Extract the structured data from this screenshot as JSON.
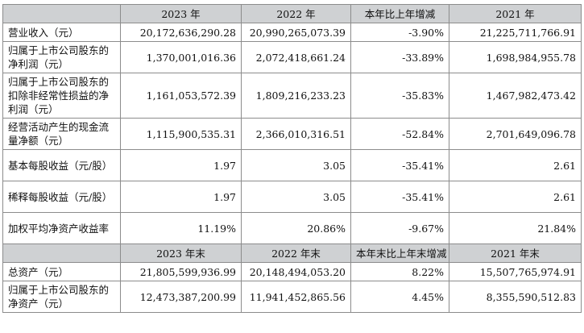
{
  "header1": [
    "",
    "2023 年",
    "2022 年",
    "本年比上年增减",
    "2021 年"
  ],
  "rows1": [
    {
      "label": "营业收入（元）",
      "v2023": "20,172,636,290.28",
      "v2022": "20,990,265,073.39",
      "change": "-3.90%",
      "v2021": "21,225,711,766.91"
    },
    {
      "label": "归属于上市公司股东的净利润（元）",
      "v2023": "1,370,001,016.36",
      "v2022": "2,072,418,661.24",
      "change": "-33.89%",
      "v2021": "1,698,984,955.78"
    },
    {
      "label": "归属于上市公司股东的扣除非经常性损益的净利润（元）",
      "v2023": "1,161,053,572.39",
      "v2022": "1,809,216,233.23",
      "change": "-35.83%",
      "v2021": "1,467,982,473.42"
    },
    {
      "label": "经营活动产生的现金流量净额（元）",
      "v2023": "1,115,900,535.31",
      "v2022": "2,366,010,316.51",
      "change": "-52.84%",
      "v2021": "2,701,649,096.78"
    },
    {
      "label": "基本每股收益（元/股）",
      "v2023": "1.97",
      "v2022": "3.05",
      "change": "-35.41%",
      "v2021": "2.61"
    },
    {
      "label": "稀释每股收益（元/股）",
      "v2023": "1.97",
      "v2022": "3.05",
      "change": "-35.41%",
      "v2021": "2.61"
    },
    {
      "label": "加权平均净资产收益率",
      "v2023": "11.19%",
      "v2022": "20.86%",
      "change": "-9.67%",
      "v2021": "21.84%"
    }
  ],
  "header2": [
    "",
    "2023 年末",
    "2022 年末",
    "本年末比上年末增减",
    "2021 年末"
  ],
  "rows2": [
    {
      "label": "总资产（元）",
      "v2023": "21,805,599,936.99",
      "v2022": "20,148,494,053.20",
      "change": "8.22%",
      "v2021": "15,507,765,974.91"
    },
    {
      "label": "归属于上市公司股东的净资产（元）",
      "v2023": "12,473,387,200.99",
      "v2022": "11,941,452,865.56",
      "change": "4.45%",
      "v2021": "8,355,590,512.83"
    }
  ]
}
